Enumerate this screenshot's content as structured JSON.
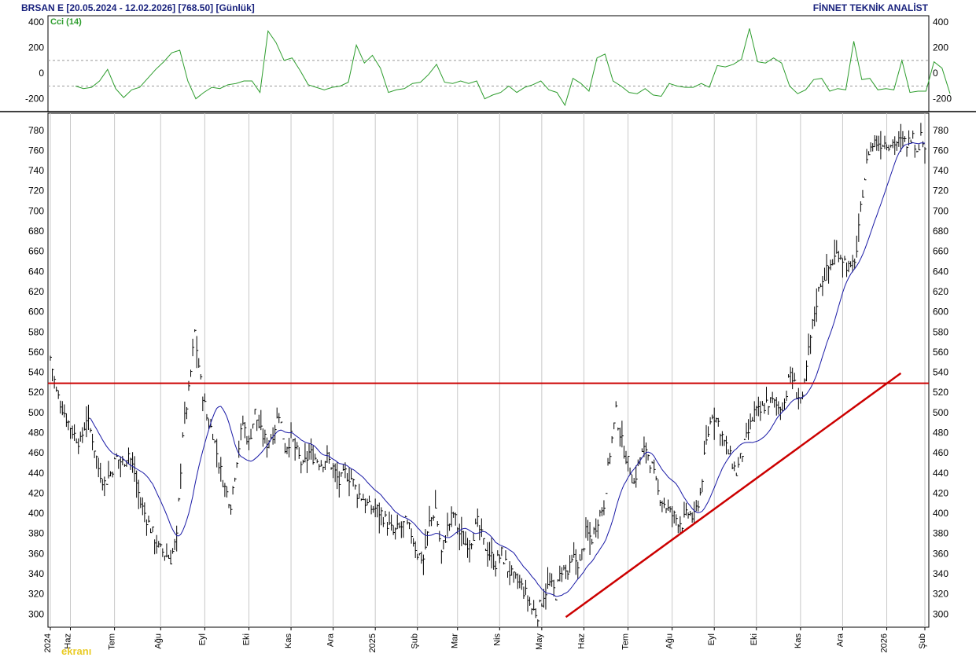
{
  "header": {
    "symbol_info": "BRSAN E  [20.05.2024 - 12.02.2026]  [768.50]  [Günlük]",
    "brand": "FİNNET TEKNİK ANALİST"
  },
  "watermark": "ekranı",
  "chart_data": [
    {
      "type": "line",
      "name": "cci-panel",
      "legend": "Cci (14)",
      "y_ticks": [
        400,
        200,
        0,
        -200
      ],
      "ylim": [
        -300,
        450
      ],
      "reference_lines": [
        100,
        -100
      ],
      "color": "#2e9d2e",
      "x": [
        0,
        4,
        8,
        12,
        16,
        20,
        24,
        28,
        32,
        36,
        40,
        44,
        48,
        52,
        56,
        60,
        64,
        68,
        72,
        76,
        80,
        84,
        88,
        92,
        96,
        100,
        104,
        108,
        112,
        116,
        120,
        124,
        128,
        132,
        136,
        140,
        144,
        148,
        152,
        156,
        160,
        164,
        168,
        172,
        176,
        180,
        184,
        188,
        192,
        196,
        200,
        204,
        208,
        212,
        216,
        220,
        224,
        228,
        232,
        236,
        240,
        244,
        248,
        252,
        256,
        260,
        264,
        268,
        272,
        276,
        280,
        284,
        288,
        292,
        296,
        300,
        304,
        308,
        312,
        316,
        320,
        324,
        328,
        332,
        336,
        340,
        344,
        348,
        352,
        356,
        360,
        364,
        368,
        372,
        376,
        380,
        384,
        388,
        392,
        396,
        400,
        404,
        408,
        412,
        416,
        420,
        424,
        428,
        432,
        436
      ],
      "values": [
        -100,
        -120,
        -110,
        -60,
        30,
        -120,
        -190,
        -130,
        -110,
        -40,
        30,
        90,
        160,
        180,
        -60,
        -200,
        -150,
        -110,
        -120,
        -90,
        -80,
        -60,
        -60,
        -150,
        330,
        240,
        100,
        120,
        20,
        -90,
        -110,
        -130,
        -110,
        -100,
        -70,
        220,
        80,
        140,
        40,
        -150,
        -130,
        -120,
        -80,
        -70,
        -10,
        70,
        -70,
        -80,
        -60,
        -80,
        -60,
        -200,
        -170,
        -150,
        -100,
        -150,
        -110,
        -90,
        -60,
        -130,
        -150,
        -250,
        -40,
        -80,
        -140,
        120,
        150,
        -60,
        -100,
        -150,
        -160,
        -120,
        -170,
        -180,
        -80,
        -100,
        -110,
        -110,
        -80,
        -110,
        60,
        50,
        70,
        110,
        350,
        90,
        80,
        120,
        80,
        -100,
        -160,
        -130,
        -50,
        -40,
        -140,
        -120,
        -130,
        250,
        -50,
        -40,
        -130,
        -120,
        -130,
        100,
        -150,
        -140,
        -140,
        90,
        40,
        -160
      ],
      "x_note": "x values are trading-day index, 0 = 20.05.2024, 436 = 12.02.2026"
    },
    {
      "type": "ohlc",
      "name": "price-panel",
      "y_ticks": [
        300,
        320,
        340,
        360,
        380,
        400,
        420,
        440,
        460,
        480,
        500,
        520,
        540,
        560,
        580,
        600,
        620,
        640,
        660,
        680,
        700,
        720,
        740,
        760,
        780
      ],
      "ylim": [
        287,
        797
      ],
      "x_tick_labels": [
        "2024",
        "Haz",
        "Tem",
        "Ağu",
        "Eyl",
        "Eki",
        "Kas",
        "Ara",
        "2025",
        "Şub",
        "Mar",
        "Nis",
        "May",
        "Haz",
        "Tem",
        "Ağu",
        "Eyl",
        "Eki",
        "Kas",
        "Ara",
        "2026",
        "Şub"
      ],
      "x_tick_index": [
        0,
        10,
        32,
        55,
        77,
        99,
        120,
        141,
        162,
        183,
        203,
        224,
        245,
        266,
        288,
        310,
        331,
        352,
        374,
        395,
        417,
        436
      ],
      "bar_color": "#000000",
      "ma_color": "#1a1aa6",
      "close_points": {
        "x": [
          0,
          3,
          6,
          9,
          12,
          15,
          18,
          21,
          24,
          27,
          30,
          33,
          36,
          39,
          42,
          45,
          48,
          51,
          54,
          57,
          60,
          63,
          66,
          69,
          72,
          75,
          78,
          81,
          84,
          87,
          90,
          93,
          96,
          99,
          102,
          105,
          108,
          111,
          114,
          117,
          120,
          123,
          126,
          129,
          132,
          135,
          138,
          141,
          144,
          147,
          150,
          153,
          156,
          159,
          162,
          165,
          168,
          171,
          174,
          177,
          180,
          183,
          186,
          189,
          192,
          195,
          198,
          201,
          204,
          207,
          210,
          213,
          216,
          219,
          222,
          225,
          228,
          231,
          234,
          237,
          240,
          243,
          246,
          249,
          252,
          255,
          258,
          261,
          264,
          267,
          270,
          273,
          276,
          279,
          282,
          285,
          288,
          291,
          294,
          297,
          300,
          303,
          306,
          309,
          312,
          315,
          318,
          321,
          324,
          327,
          330,
          333,
          336,
          339,
          342,
          345,
          348,
          351,
          354,
          357,
          360,
          363,
          366,
          369,
          372,
          375,
          378,
          381,
          384,
          387,
          390,
          393,
          396,
          399,
          402,
          405,
          408,
          411,
          414,
          417,
          420,
          423,
          426,
          429,
          432,
          435
        ],
        "values": [
          555,
          520,
          505,
          490,
          478,
          470,
          495,
          475,
          445,
          430,
          440,
          455,
          450,
          460,
          440,
          410,
          395,
          380,
          365,
          360,
          355,
          375,
          480,
          520,
          580,
          530,
          495,
          480,
          450,
          425,
          410,
          455,
          490,
          470,
          500,
          480,
          470,
          480,
          500,
          465,
          475,
          460,
          445,
          460,
          455,
          450,
          455,
          445,
          430,
          440,
          435,
          420,
          415,
          405,
          405,
          400,
          390,
          380,
          385,
          390,
          380,
          360,
          355,
          390,
          405,
          360,
          385,
          400,
          380,
          370,
          375,
          390,
          370,
          360,
          350,
          360,
          345,
          335,
          330,
          320,
          305,
          300,
          320,
          330,
          320,
          345,
          340,
          355,
          350,
          380,
          375,
          395,
          410,
          460,
          500,
          470,
          450,
          430,
          455,
          465,
          445,
          420,
          410,
          400,
          395,
          390,
          400,
          395,
          420,
          470,
          500,
          490,
          470,
          455,
          440,
          460,
          480,
          500,
          500,
          510,
          510,
          505,
          510,
          540,
          520,
          510,
          560,
          600,
          630,
          640,
          650,
          660,
          650,
          640,
          660,
          720,
          760,
          768,
          768,
          768,
          768,
          768,
          768,
          768,
          768,
          768
        ],
        "note": "approximate close series read from chart (bar index)"
      },
      "reference_lines": [
        {
          "kind": "horizontal",
          "value": 529,
          "color": "#cc0000"
        },
        {
          "kind": "trend",
          "from_x": 257,
          "from_y": 297,
          "to_x": 424,
          "to_y": 539,
          "color": "#cc0000"
        }
      ]
    }
  ]
}
